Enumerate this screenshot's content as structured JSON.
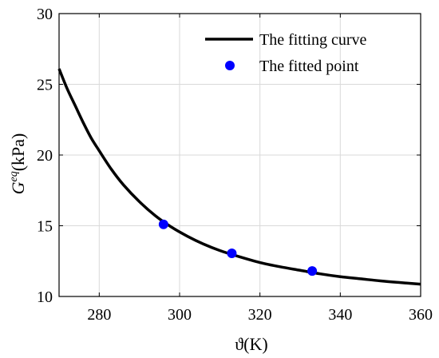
{
  "chart_data": {
    "type": "line",
    "xlabel": "ϑ(K)",
    "ylabel_base": "G",
    "ylabel_sup": "eq",
    "ylabel_units": "(kPa)",
    "xlim": [
      270,
      360
    ],
    "ylim": [
      10,
      30
    ],
    "xticks": [
      280,
      300,
      320,
      340,
      360
    ],
    "yticks": [
      10,
      15,
      20,
      25,
      30
    ],
    "grid": true,
    "legend_position": "top-right",
    "series": [
      {
        "name": "The fitting curve",
        "kind": "line",
        "color": "#000000",
        "x": [
          270,
          272,
          274,
          276,
          278,
          280,
          283,
          286,
          290,
          294,
          298,
          302,
          306,
          310,
          315,
          320,
          325,
          330,
          335,
          340,
          345,
          350,
          355,
          360
        ],
        "y": [
          26.1,
          24.7,
          23.5,
          22.3,
          21.2,
          20.3,
          19.0,
          17.9,
          16.7,
          15.7,
          14.9,
          14.25,
          13.7,
          13.25,
          12.8,
          12.4,
          12.1,
          11.85,
          11.6,
          11.4,
          11.25,
          11.1,
          10.98,
          10.87
        ]
      },
      {
        "name": "The fitted point",
        "kind": "scatter",
        "color": "#0000ff",
        "x": [
          296,
          313,
          333
        ],
        "y": [
          15.1,
          13.05,
          11.8
        ]
      }
    ]
  }
}
